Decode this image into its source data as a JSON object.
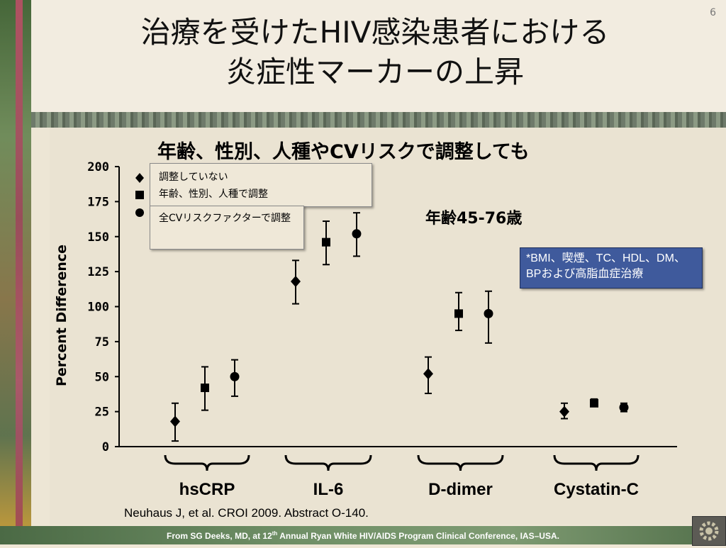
{
  "page_number": "6",
  "title_lines": [
    "治療を受けたHIV感染患者における",
    "炎症性マーカーの上昇"
  ],
  "chart_heading": "年齢、性別、人種やCVリスクで調整しても",
  "age_label": "年齢45-76歳",
  "note_lines": [
    "*BMI、喫煙、TC、HDL、DM、",
    "BPおよび高脂血症治療"
  ],
  "citation": "Neuhaus  J, et al. CROI 2009. Abstract O-140.",
  "footer": "From SG Deeks, MD,  at 12th Annual Ryan White HIV/AIDS Program Clinical Conference, IAS–USA.",
  "chart_data": {
    "type": "scatter",
    "ylabel": "Percent Difference",
    "ylim": [
      0,
      200
    ],
    "yticks": [
      "0",
      "25",
      "50",
      "75",
      "100",
      "125",
      "150",
      "175",
      "200"
    ],
    "categories": [
      "hsCRP",
      "IL-6",
      "D-dimer",
      "Cystatin-C"
    ],
    "legend": {
      "placement": "top-left",
      "entries": [
        "調整していない",
        "年齢、性別、人種で調整",
        "全CVリスクファクターで調整"
      ]
    },
    "series": [
      {
        "name": "調整していない",
        "marker": "diamond",
        "values": [
          18,
          118,
          52,
          25
        ],
        "low": [
          4,
          102,
          38,
          20
        ],
        "high": [
          31,
          133,
          64,
          31
        ]
      },
      {
        "name": "年齢、性別、人種で調整",
        "marker": "square",
        "values": [
          42,
          146,
          95,
          31
        ],
        "low": [
          26,
          130,
          83,
          29
        ],
        "high": [
          57,
          161,
          110,
          34
        ]
      },
      {
        "name": "全CVリスクファクターで調整",
        "marker": "circle",
        "values": [
          50,
          152,
          95,
          28
        ],
        "low": [
          36,
          136,
          74,
          25
        ],
        "high": [
          62,
          167,
          111,
          31
        ]
      }
    ]
  }
}
